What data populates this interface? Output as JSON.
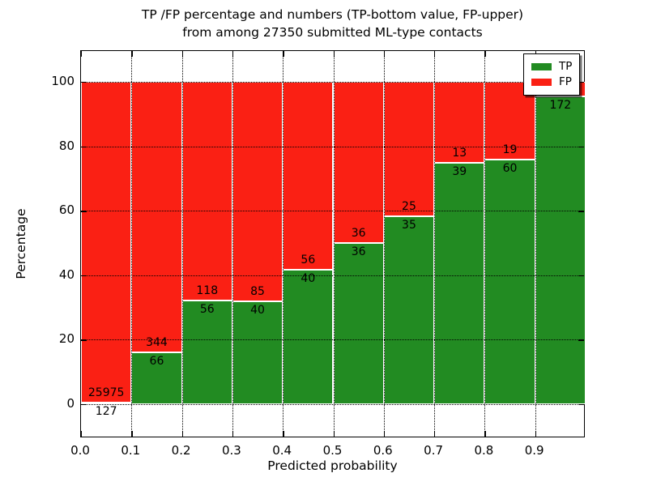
{
  "title": {
    "line1": "TP /FP percentage and numbers (TP-bottom value, FP-upper)",
    "line2": "from among 27350 submitted ML-type contacts"
  },
  "axes": {
    "xlabel": "Predicted probability",
    "ylabel": "Percentage",
    "xtick_labels": [
      "0.0",
      "0.1",
      "0.2",
      "0.3",
      "0.4",
      "0.5",
      "0.6",
      "0.7",
      "0.8",
      "0.9"
    ],
    "xtick_values": [
      0.0,
      0.1,
      0.2,
      0.3,
      0.4,
      0.5,
      0.6,
      0.7,
      0.8,
      0.9
    ],
    "ytick_labels": [
      "0",
      "20",
      "40",
      "60",
      "80",
      "100"
    ],
    "ytick_values": [
      0,
      20,
      40,
      60,
      80,
      100
    ]
  },
  "legend": {
    "items": [
      {
        "label": "TP",
        "color": "#228B22"
      },
      {
        "label": "FP",
        "color": "#FA2014"
      }
    ]
  },
  "colors": {
    "tp": "#228B22",
    "fp": "#FA2014",
    "grid": "#000000",
    "background": "#FFFFFF"
  },
  "chart_data": {
    "type": "bar",
    "stacked": true,
    "units": "percent",
    "title": "TP /FP percentage and numbers (TP-bottom value, FP-upper) from among 27350 submitted ML-type contacts",
    "xlabel": "Predicted probability",
    "ylabel": "Percentage",
    "total_submitted": 27350,
    "xlim": [
      0,
      1.0
    ],
    "ylim": [
      -10.5,
      109.5
    ],
    "grid": "dotted-black",
    "legend_position": "upper-right",
    "series": [
      {
        "name": "TP",
        "color": "#228B22",
        "position": "bottom"
      },
      {
        "name": "FP",
        "color": "#FA2014",
        "position": "top"
      }
    ],
    "bins": [
      {
        "x_start": 0.0,
        "x_end": 0.1,
        "tp": 127,
        "fp": 25975,
        "tp_pct": 0.49,
        "tp_label": "127",
        "fp_label": "25975"
      },
      {
        "x_start": 0.1,
        "x_end": 0.2,
        "tp": 66,
        "fp": 344,
        "tp_pct": 16.1,
        "tp_label": "66",
        "fp_label": "344"
      },
      {
        "x_start": 0.2,
        "x_end": 0.3,
        "tp": 56,
        "fp": 118,
        "tp_pct": 32.2,
        "tp_label": "56",
        "fp_label": "118"
      },
      {
        "x_start": 0.3,
        "x_end": 0.4,
        "tp": 40,
        "fp": 85,
        "tp_pct": 32.0,
        "tp_label": "40",
        "fp_label": "85"
      },
      {
        "x_start": 0.4,
        "x_end": 0.5,
        "tp": 40,
        "fp": 56,
        "tp_pct": 41.7,
        "tp_label": "40",
        "fp_label": "56"
      },
      {
        "x_start": 0.5,
        "x_end": 0.6,
        "tp": 36,
        "fp": 36,
        "tp_pct": 50.0,
        "tp_label": "36",
        "fp_label": "36"
      },
      {
        "x_start": 0.6,
        "x_end": 0.7,
        "tp": 35,
        "fp": 25,
        "tp_pct": 58.3,
        "tp_label": "35",
        "fp_label": "25"
      },
      {
        "x_start": 0.7,
        "x_end": 0.8,
        "tp": 39,
        "fp": 13,
        "tp_pct": 75.0,
        "tp_label": "39",
        "fp_label": "13"
      },
      {
        "x_start": 0.8,
        "x_end": 0.9,
        "tp": 60,
        "fp": 19,
        "tp_pct": 75.9,
        "tp_label": "60",
        "fp_label": "19"
      },
      {
        "x_start": 0.9,
        "x_end": 1.0,
        "tp": 172,
        "fp": null,
        "tp_pct": 95.6,
        "tp_label": "172",
        "fp_label": ""
      }
    ]
  }
}
